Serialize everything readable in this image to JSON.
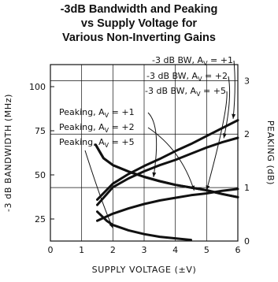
{
  "chart_data": {
    "type": "line",
    "title_lines": [
      "-3dB Bandwidth and Peaking",
      "vs Supply Voltage for",
      "Various Non-Inverting Gains"
    ],
    "xlabel": "SUPPLY VOLTAGE (±V)",
    "ylabel_left": "-3 dB BANDWIDTH (MHz)",
    "ylabel_right": "PEAKING (dB)",
    "xlim": [
      0,
      6
    ],
    "ylim_left": [
      12.5,
      112.5
    ],
    "ylim_right": [
      0,
      3.3
    ],
    "x_ticks": [
      "0",
      "1",
      "2",
      "3",
      "4",
      "5",
      "6"
    ],
    "y_left_ticks": [
      {
        "value": 25,
        "label": "25"
      },
      {
        "value": 50,
        "label": "50"
      },
      {
        "value": 75,
        "label": "75"
      },
      {
        "value": 100,
        "label": "100"
      }
    ],
    "y_right_ticks": [
      {
        "value": 0,
        "label": "0"
      },
      {
        "value": 1,
        "label": "1"
      },
      {
        "value": 2,
        "label": "2"
      },
      {
        "value": 3,
        "label": "3"
      }
    ],
    "grid": true,
    "series": [
      {
        "name": "-3 dB BW, A_V = +1",
        "axis": "left",
        "x": [
          1.5,
          2,
          2.5,
          3,
          3.5,
          4,
          4.5,
          5,
          5.5,
          6
        ],
        "y": [
          36,
          45,
          50.5,
          55,
          59,
          63.5,
          67.5,
          72,
          76.5,
          81
        ]
      },
      {
        "name": "-3 dB BW, A_V = +2",
        "axis": "left",
        "x": [
          1.5,
          2,
          2.5,
          3,
          3.5,
          4,
          4.5,
          5,
          5.5,
          6
        ],
        "y": [
          33,
          43,
          48,
          52,
          55.5,
          58.5,
          62,
          65.5,
          68.5,
          71
        ]
      },
      {
        "name": "-3 dB BW, A_V = +5",
        "axis": "left",
        "x": [
          1.5,
          2,
          2.5,
          3,
          3.5,
          4,
          4.5,
          5,
          5.5,
          6
        ],
        "y": [
          24,
          28,
          31,
          33.5,
          35.5,
          37,
          38.5,
          39.5,
          41,
          42
        ]
      },
      {
        "name": "Peaking, A_V = +1",
        "axis": "right",
        "x": [
          1.45,
          1.7,
          2,
          2.5,
          3,
          3.5,
          4,
          4.5,
          5,
          5.5,
          6
        ],
        "y": [
          1.8,
          1.55,
          1.42,
          1.3,
          1.2,
          1.12,
          1.05,
          1.0,
          0.95,
          0.88,
          0.82
        ]
      },
      {
        "name": "Peaking, A_V = +2",
        "axis": "right",
        "x": [
          1.45,
          1.7,
          2,
          2.5,
          3,
          3.5,
          4,
          4.5,
          5,
          5.5,
          6
        ],
        "y": [
          1.8,
          1.55,
          1.42,
          1.3,
          1.2,
          1.12,
          1.05,
          1.0,
          0.95,
          0.88,
          0.82
        ]
      },
      {
        "name": "Peaking, A_V = +5",
        "axis": "right",
        "x": [
          1.5,
          1.8,
          2,
          2.5,
          3,
          3.5,
          4,
          4.5
        ],
        "y": [
          0.55,
          0.38,
          0.3,
          0.2,
          0.13,
          0.08,
          0.05,
          0.02
        ]
      }
    ],
    "legend": {
      "labels": [
        {
          "text": "-3 dB BW, A",
          "sub": "V",
          "suffix": " = +1",
          "series": 0
        },
        {
          "text": "-3 dB BW, A",
          "sub": "V",
          "suffix": " = +2",
          "series": 1
        },
        {
          "text": "-3 dB BW, A",
          "sub": "V",
          "suffix": " = +5",
          "series": 2
        },
        {
          "text": "Peaking, A",
          "sub": "V",
          "suffix": " = +1",
          "series": 3
        },
        {
          "text": "Peaking, A",
          "sub": "V",
          "suffix": " = +2",
          "series": 4
        },
        {
          "text": "Peaking, A",
          "sub": "V",
          "suffix": " = +5",
          "series": 5
        }
      ]
    },
    "colors": {
      "line": "#111111",
      "grid": "#111111",
      "background": "#ffffff"
    }
  }
}
